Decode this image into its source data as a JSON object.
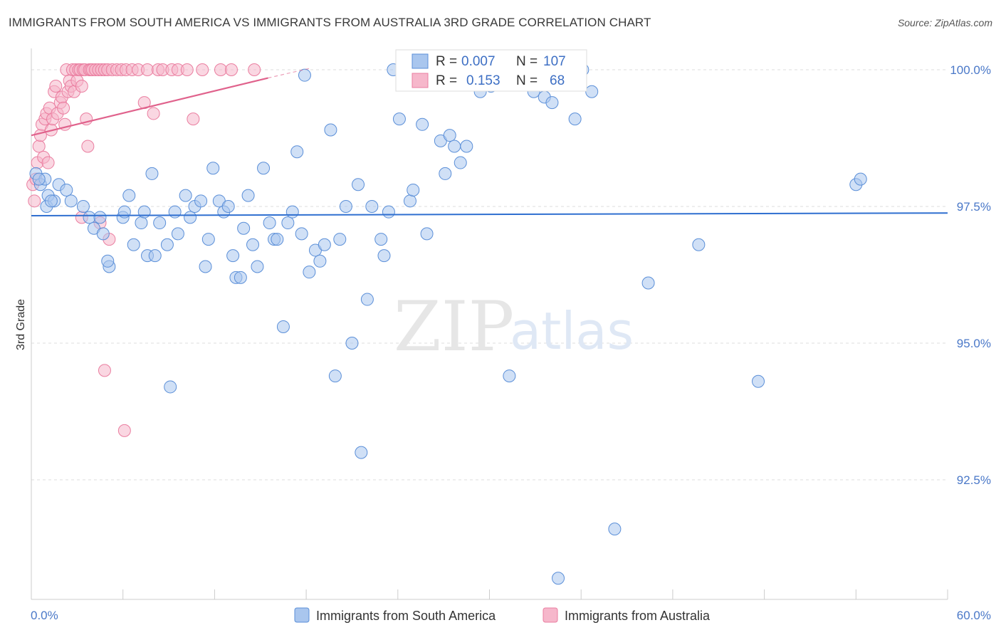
{
  "title": "IMMIGRANTS FROM SOUTH AMERICA VS IMMIGRANTS FROM AUSTRALIA 3RD GRADE CORRELATION CHART",
  "source": "Source: ZipAtlas.com",
  "watermark": {
    "zip": "ZIP",
    "atlas": "atlas"
  },
  "colors": {
    "blue_fill": "#a9c6ee",
    "blue_stroke": "#5b8fd8",
    "blue_line": "#2f6fd0",
    "pink_fill": "#f6b7cb",
    "pink_stroke": "#ea7ea0",
    "pink_line": "#e0628c",
    "grid": "#dcdcdc",
    "axis_label": "#4a78c8"
  },
  "stats": {
    "r_label": "R =",
    "n_label": "N =",
    "series1": {
      "r": "0.007",
      "n": "107"
    },
    "series2": {
      "r": "0.153",
      "n": "68"
    }
  },
  "chart_data": {
    "type": "scatter",
    "xlabel": "",
    "ylabel": "3rd Grade",
    "xlim": [
      0,
      60
    ],
    "ylim": [
      90.0,
      100.3
    ],
    "x_tick_labels": {
      "left": "0.0%",
      "right": "60.0%"
    },
    "y_ticks": [
      {
        "value": 100.0,
        "label": "100.0%"
      },
      {
        "value": 97.5,
        "label": "97.5%"
      },
      {
        "value": 95.0,
        "label": "95.0%"
      },
      {
        "value": 92.5,
        "label": "92.5%"
      }
    ],
    "series": [
      {
        "name": "Immigrants from South America",
        "color": "blue",
        "trend": {
          "x": [
            0,
            60
          ],
          "y": [
            97.33,
            97.38
          ]
        },
        "points": [
          [
            0.3,
            98.1
          ],
          [
            0.6,
            97.9
          ],
          [
            0.9,
            98.0
          ],
          [
            1.1,
            97.7
          ],
          [
            1.0,
            97.5
          ],
          [
            1.5,
            97.6
          ],
          [
            1.8,
            97.9
          ],
          [
            2.3,
            97.8
          ],
          [
            2.6,
            97.6
          ],
          [
            3.4,
            97.5
          ],
          [
            3.8,
            97.3
          ],
          [
            4.1,
            97.1
          ],
          [
            4.5,
            97.3
          ],
          [
            4.7,
            97.0
          ],
          [
            5.1,
            96.4
          ],
          [
            5.0,
            96.5
          ],
          [
            6.0,
            97.3
          ],
          [
            6.1,
            97.4
          ],
          [
            6.4,
            97.7
          ],
          [
            6.7,
            96.8
          ],
          [
            7.2,
            97.2
          ],
          [
            7.4,
            97.4
          ],
          [
            7.6,
            96.6
          ],
          [
            7.9,
            98.1
          ],
          [
            8.1,
            96.6
          ],
          [
            8.4,
            97.2
          ],
          [
            8.9,
            96.8
          ],
          [
            9.1,
            94.2
          ],
          [
            9.4,
            97.4
          ],
          [
            9.6,
            97.0
          ],
          [
            10.1,
            97.7
          ],
          [
            10.4,
            97.3
          ],
          [
            10.7,
            97.5
          ],
          [
            11.1,
            97.6
          ],
          [
            11.4,
            96.4
          ],
          [
            11.6,
            96.9
          ],
          [
            11.9,
            98.2
          ],
          [
            12.3,
            97.6
          ],
          [
            12.6,
            97.4
          ],
          [
            12.9,
            97.5
          ],
          [
            13.2,
            96.6
          ],
          [
            13.4,
            96.2
          ],
          [
            13.7,
            96.2
          ],
          [
            13.9,
            97.1
          ],
          [
            14.2,
            97.7
          ],
          [
            14.5,
            96.8
          ],
          [
            14.8,
            96.4
          ],
          [
            15.2,
            98.2
          ],
          [
            15.6,
            97.2
          ],
          [
            15.9,
            96.9
          ],
          [
            16.1,
            96.9
          ],
          [
            16.5,
            95.3
          ],
          [
            16.8,
            97.2
          ],
          [
            17.1,
            97.4
          ],
          [
            17.4,
            98.5
          ],
          [
            17.7,
            97.0
          ],
          [
            17.9,
            99.9
          ],
          [
            18.2,
            96.3
          ],
          [
            18.6,
            96.7
          ],
          [
            18.9,
            96.5
          ],
          [
            19.2,
            96.8
          ],
          [
            19.6,
            98.9
          ],
          [
            19.9,
            94.4
          ],
          [
            20.2,
            96.9
          ],
          [
            20.6,
            97.5
          ],
          [
            21.0,
            95.0
          ],
          [
            21.4,
            97.9
          ],
          [
            21.6,
            93.0
          ],
          [
            22.0,
            95.8
          ],
          [
            22.3,
            97.5
          ],
          [
            22.9,
            96.9
          ],
          [
            23.1,
            96.6
          ],
          [
            23.4,
            97.4
          ],
          [
            23.7,
            100.0
          ],
          [
            24.1,
            99.1
          ],
          [
            24.8,
            97.6
          ],
          [
            25.0,
            97.8
          ],
          [
            25.6,
            99.0
          ],
          [
            25.9,
            97.0
          ],
          [
            26.8,
            98.7
          ],
          [
            27.1,
            98.1
          ],
          [
            27.4,
            98.8
          ],
          [
            27.7,
            98.6
          ],
          [
            28.1,
            98.3
          ],
          [
            28.5,
            98.6
          ],
          [
            29.4,
            99.6
          ],
          [
            30.1,
            99.7
          ],
          [
            30.4,
            100.0
          ],
          [
            31.3,
            94.4
          ],
          [
            32.5,
            99.9
          ],
          [
            32.9,
            99.6
          ],
          [
            33.6,
            99.5
          ],
          [
            34.1,
            99.4
          ],
          [
            34.4,
            99.8
          ],
          [
            34.8,
            99.8
          ],
          [
            35.6,
            99.1
          ],
          [
            36.1,
            100.0
          ],
          [
            36.7,
            99.6
          ],
          [
            34.5,
            90.7
          ],
          [
            38.2,
            91.6
          ],
          [
            40.4,
            96.1
          ],
          [
            43.7,
            96.8
          ],
          [
            47.6,
            94.3
          ],
          [
            54.0,
            97.9
          ],
          [
            54.3,
            98.0
          ],
          [
            0.5,
            98.0
          ],
          [
            1.3,
            97.6
          ]
        ]
      },
      {
        "name": "Immigrants from Australia",
        "color": "pink",
        "trend": {
          "x": [
            0,
            15.5
          ],
          "y": [
            98.8,
            99.85
          ]
        },
        "trend_dashed": {
          "x": [
            15.5,
            18.3
          ],
          "y": [
            99.85,
            100.03
          ]
        },
        "points": [
          [
            0.1,
            97.9
          ],
          [
            0.2,
            97.6
          ],
          [
            0.3,
            98.0
          ],
          [
            0.4,
            98.3
          ],
          [
            0.5,
            98.6
          ],
          [
            0.6,
            98.8
          ],
          [
            0.7,
            99.0
          ],
          [
            0.8,
            98.4
          ],
          [
            0.9,
            99.1
          ],
          [
            1.0,
            99.2
          ],
          [
            1.1,
            98.3
          ],
          [
            1.2,
            99.3
          ],
          [
            1.3,
            98.9
          ],
          [
            1.4,
            99.1
          ],
          [
            1.5,
            99.6
          ],
          [
            1.6,
            99.7
          ],
          [
            1.7,
            99.2
          ],
          [
            1.9,
            99.4
          ],
          [
            2.0,
            99.5
          ],
          [
            2.1,
            99.3
          ],
          [
            2.2,
            99.0
          ],
          [
            2.3,
            100.0
          ],
          [
            2.4,
            99.6
          ],
          [
            2.5,
            99.8
          ],
          [
            2.6,
            99.7
          ],
          [
            2.7,
            100.0
          ],
          [
            2.8,
            99.6
          ],
          [
            2.9,
            100.0
          ],
          [
            3.0,
            99.8
          ],
          [
            3.1,
            100.0
          ],
          [
            3.2,
            100.0
          ],
          [
            3.3,
            99.7
          ],
          [
            3.4,
            100.0
          ],
          [
            3.5,
            100.0
          ],
          [
            3.6,
            99.1
          ],
          [
            3.7,
            98.6
          ],
          [
            3.8,
            100.0
          ],
          [
            3.9,
            100.0
          ],
          [
            4.0,
            100.0
          ],
          [
            4.2,
            100.0
          ],
          [
            4.4,
            100.0
          ],
          [
            4.6,
            100.0
          ],
          [
            4.8,
            100.0
          ],
          [
            5.0,
            100.0
          ],
          [
            5.3,
            100.0
          ],
          [
            5.6,
            100.0
          ],
          [
            5.9,
            100.0
          ],
          [
            6.2,
            100.0
          ],
          [
            6.6,
            100.0
          ],
          [
            7.0,
            100.0
          ],
          [
            7.4,
            99.4
          ],
          [
            7.6,
            100.0
          ],
          [
            8.0,
            99.2
          ],
          [
            8.3,
            100.0
          ],
          [
            8.6,
            100.0
          ],
          [
            9.2,
            100.0
          ],
          [
            9.6,
            100.0
          ],
          [
            10.2,
            100.0
          ],
          [
            10.6,
            99.1
          ],
          [
            11.2,
            100.0
          ],
          [
            12.4,
            100.0
          ],
          [
            13.1,
            100.0
          ],
          [
            14.6,
            100.0
          ],
          [
            3.3,
            97.3
          ],
          [
            4.5,
            97.2
          ],
          [
            5.1,
            96.9
          ],
          [
            4.8,
            94.5
          ],
          [
            6.1,
            93.4
          ]
        ]
      }
    ],
    "legend": [
      "Immigrants from South America",
      "Immigrants from Australia"
    ]
  }
}
